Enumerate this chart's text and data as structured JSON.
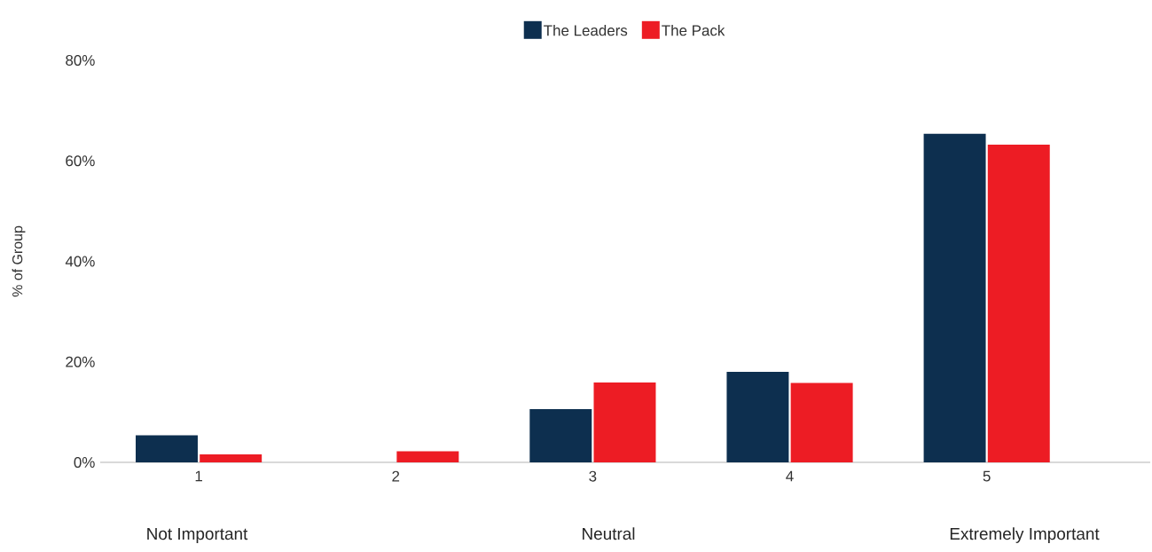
{
  "chart_data": {
    "type": "bar",
    "ylabel": "% of Group",
    "categories": [
      "1",
      "2",
      "3",
      "4",
      "5"
    ],
    "series": [
      {
        "name": "The Leaders",
        "color": "#0d2f4f",
        "values": [
          5.4,
          0,
          10.6,
          18.0,
          65.4
        ]
      },
      {
        "name": "The Pack",
        "color": "#ed1c24",
        "values": [
          1.6,
          2.2,
          15.9,
          15.8,
          63.2
        ]
      }
    ],
    "ylim": [
      0,
      80
    ],
    "yticks": [
      {
        "value": 0,
        "label": "0%"
      },
      {
        "value": 20,
        "label": "20%"
      },
      {
        "value": 40,
        "label": "40%"
      },
      {
        "value": 60,
        "label": "60%"
      },
      {
        "value": 80,
        "label": "80%"
      }
    ],
    "grid": false,
    "legend": "top",
    "annotations": [
      "Not Important",
      "Neutral",
      "Extremely Important"
    ]
  }
}
